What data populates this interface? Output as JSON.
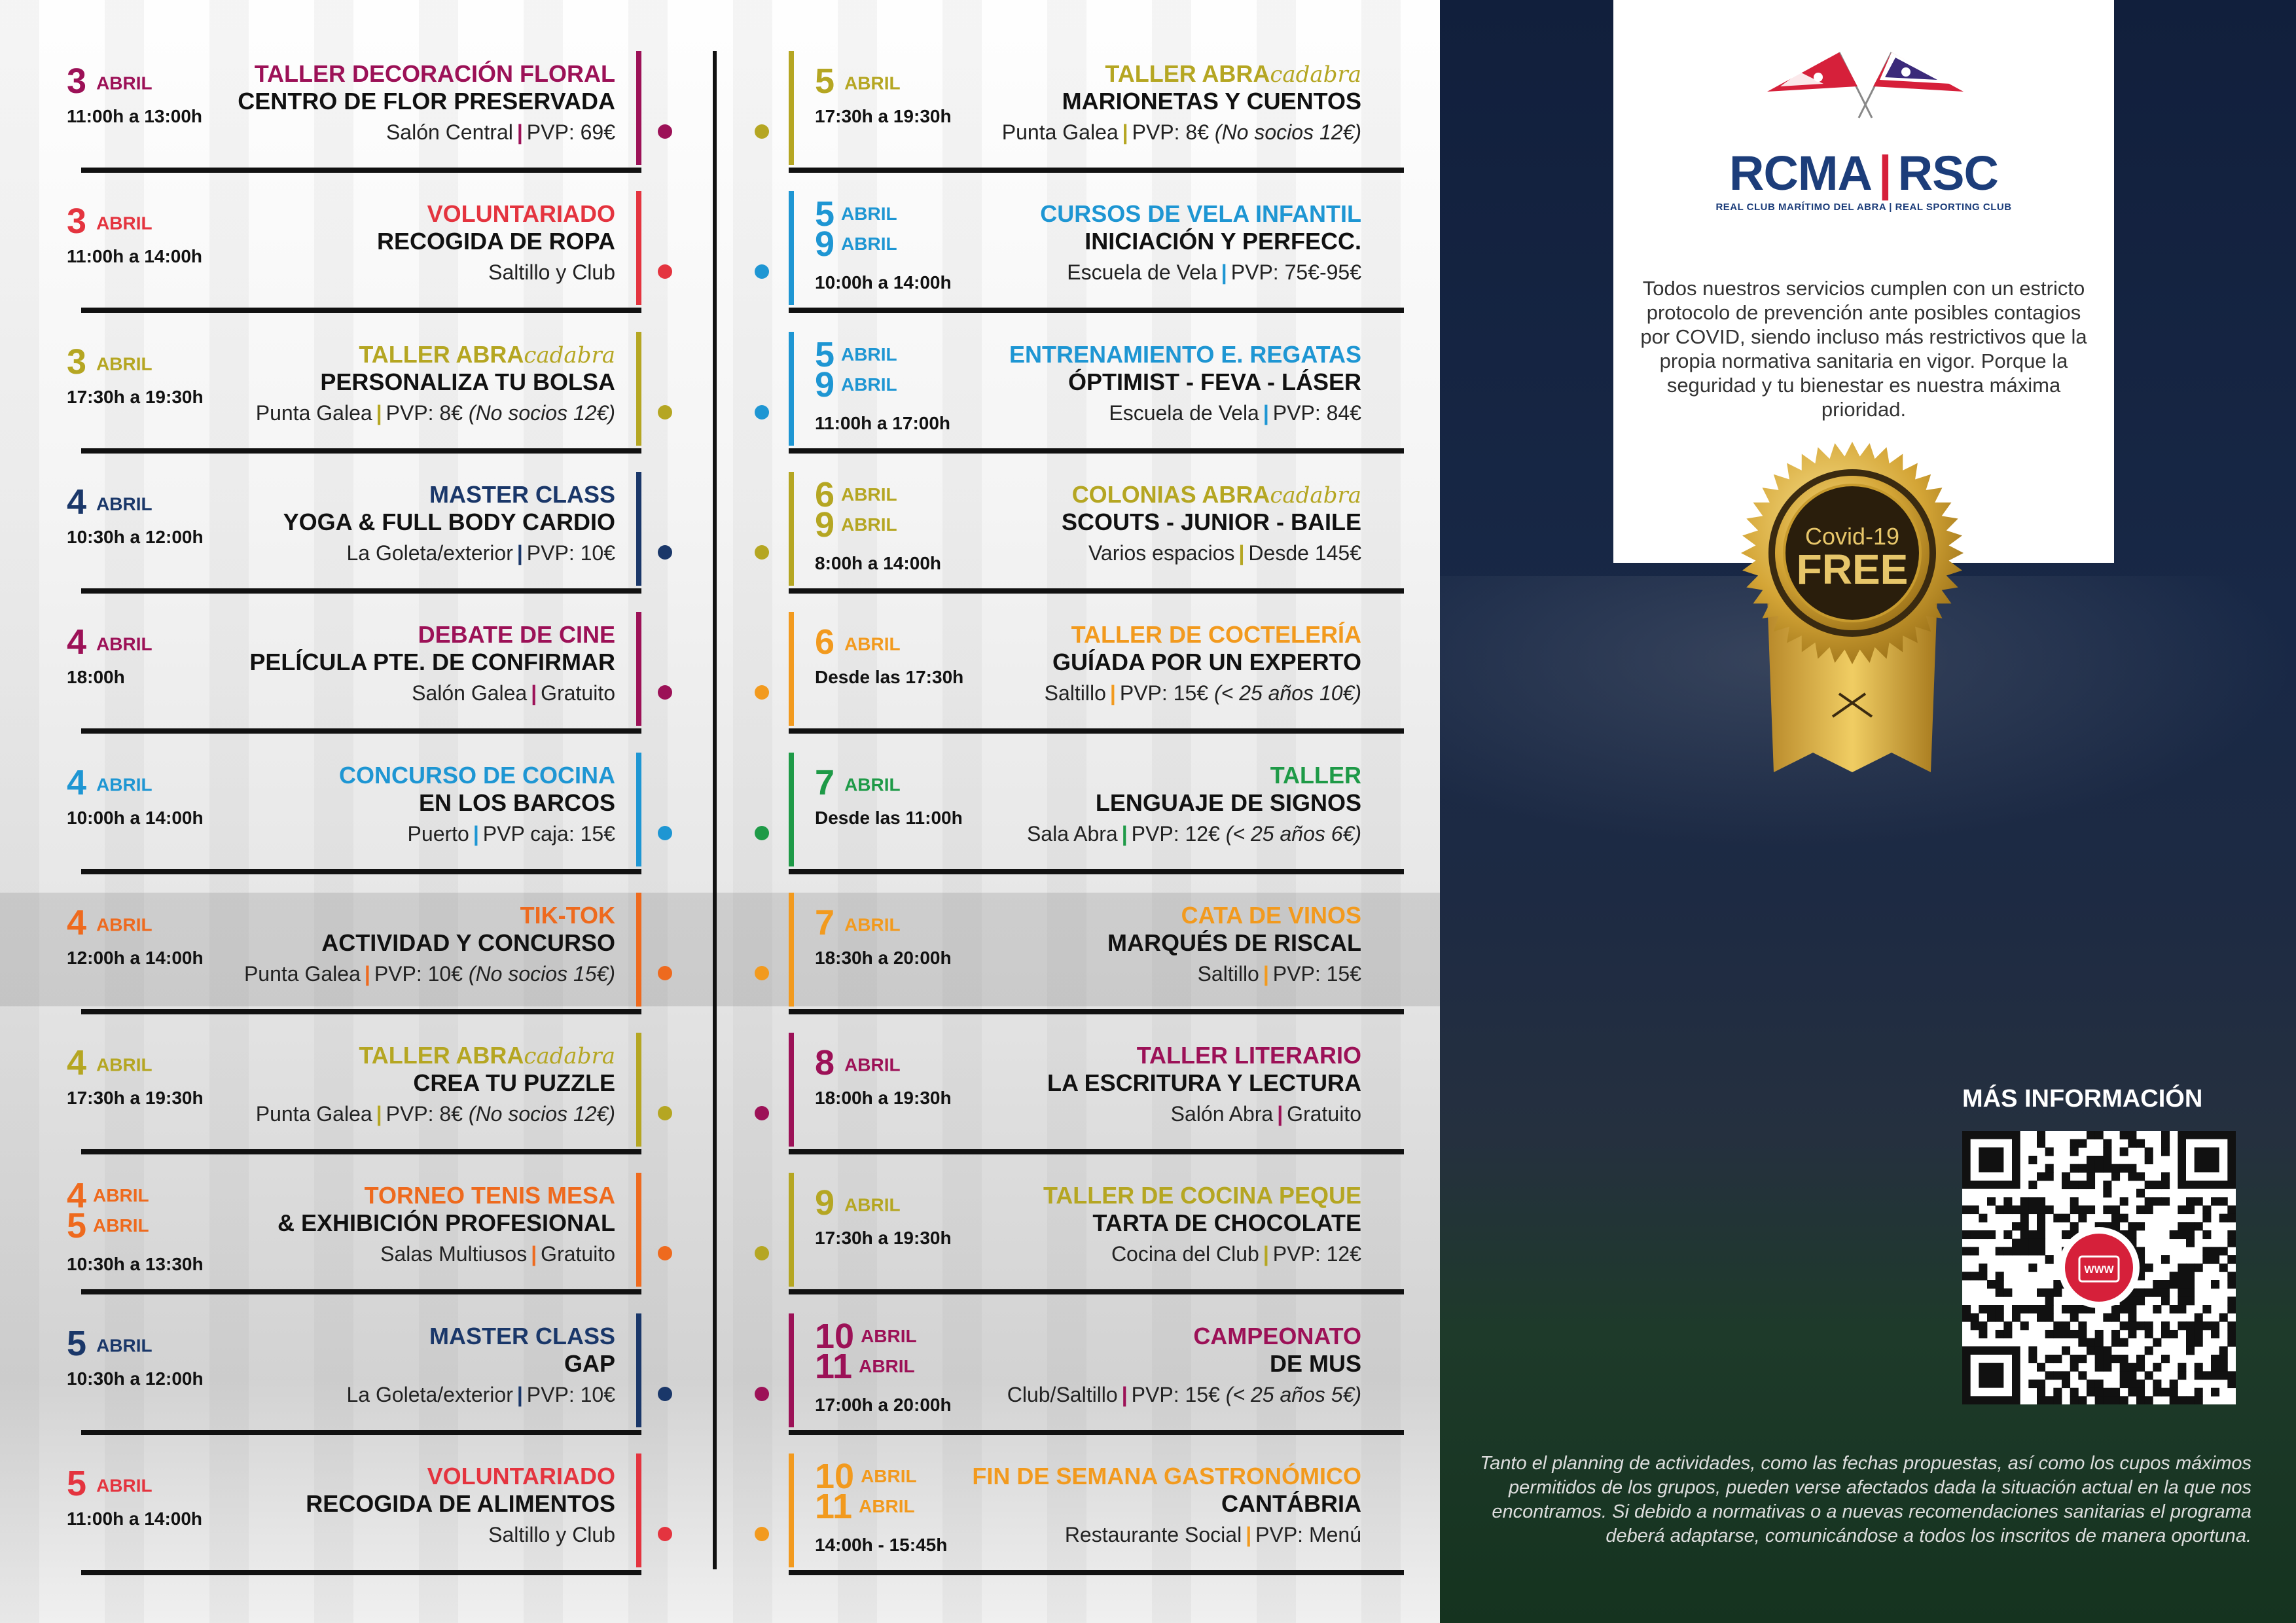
{
  "left_column": [
    {
      "date_num": "3",
      "date_month": "ABRIL",
      "time": "11:00h a 13:00h",
      "category": "TALLER DECORACIÓN FLORAL",
      "title": "CENTRO DE FLOR PRESERVADA",
      "place": "Salón Central",
      "price": "PVP: 69€",
      "price_note": "",
      "color": "#9c1157"
    },
    {
      "date_num": "3",
      "date_month": "ABRIL",
      "time": "11:00h a 14:00h",
      "category": "VOLUNTARIADO",
      "title": "RECOGIDA DE ROPA",
      "place": "Saltillo y Club",
      "price": "",
      "price_note": "",
      "color": "#e4343f"
    },
    {
      "date_num": "3",
      "date_month": "ABRIL",
      "time": "17:30h a 19:30h",
      "category": "TALLER ABRA",
      "category_script": "cadabra",
      "title": "PERSONALIZA TU BOLSA",
      "place": "Punta Galea",
      "price": "PVP: 8€",
      "price_note": "(No socios 12€)",
      "color": "#b5a622"
    },
    {
      "date_num": "4",
      "date_month": "ABRIL",
      "time": "10:30h a 12:00h",
      "category": "MASTER CLASS",
      "title": "YOGA & FULL BODY CARDIO",
      "place": "La Goleta/exterior",
      "price": "PVP: 10€",
      "price_note": "",
      "color": "#1a3769"
    },
    {
      "date_num": "4",
      "date_month": "ABRIL",
      "time": "18:00h",
      "category": "DEBATE DE CINE",
      "title": "PELÍCULA PTE. DE CONFIRMAR",
      "place": "Salón Galea",
      "price": "Gratuito",
      "price_note": "",
      "color": "#9c1157"
    },
    {
      "date_num": "4",
      "date_month": "ABRIL",
      "time": "10:00h a 14:00h",
      "category": "CONCURSO DE COCINA",
      "title": "EN LOS BARCOS",
      "place": "Puerto",
      "price": "PVP caja: 15€",
      "price_note": "",
      "color": "#1e96d3"
    },
    {
      "date_num": "4",
      "date_month": "ABRIL",
      "time": "12:00h a 14:00h",
      "category": "TIK-TOK",
      "title": "ACTIVIDAD Y CONCURSO",
      "place": "Punta Galea",
      "price": "PVP: 10€",
      "price_note": "(No socios 15€)",
      "color": "#ee6a1e"
    },
    {
      "date_num": "4",
      "date_month": "ABRIL",
      "time": "17:30h a 19:30h",
      "category": "TALLER ABRA",
      "category_script": "cadabra",
      "title": "CREA TU PUZZLE",
      "place": "Punta Galea",
      "price": "PVP: 8€",
      "price_note": "(No socios 12€)",
      "color": "#b5a622"
    },
    {
      "date_num": "4",
      "date_num2": "5",
      "date_month": "ABRIL",
      "time": "10:30h a 13:30h",
      "category": "TORNEO TENIS MESA",
      "title": "& EXHIBICIÓN PROFESIONAL",
      "place": "Salas Multiusos",
      "price": "Gratuito",
      "price_note": "",
      "color": "#ee6a1e"
    },
    {
      "date_num": "5",
      "date_month": "ABRIL",
      "time": "10:30h a 12:00h",
      "category": "MASTER CLASS",
      "title": "GAP",
      "place": "La Goleta/exterior",
      "price": "PVP: 10€",
      "price_note": "",
      "color": "#1a3769"
    },
    {
      "date_num": "5",
      "date_month": "ABRIL",
      "time": "11:00h a 14:00h",
      "category": "VOLUNTARIADO",
      "title": "RECOGIDA DE ALIMENTOS",
      "place": "Saltillo y Club",
      "price": "",
      "price_note": "",
      "color": "#e4343f"
    }
  ],
  "right_column": [
    {
      "date_num": "5",
      "date_month": "ABRIL",
      "time": "17:30h a 19:30h",
      "category": "TALLER ABRA",
      "category_script": "cadabra",
      "title": "MARIONETAS Y CUENTOS",
      "place": "Punta Galea",
      "price": "PVP: 8€",
      "price_note": "(No socios 12€)",
      "color": "#b5a622"
    },
    {
      "date_num": "5",
      "date_num2": "9",
      "date_month": "ABRIL",
      "time": "10:00h a 14:00h",
      "category": "CURSOS DE VELA INFANTIL",
      "title": "INICIACIÓN Y PERFECC.",
      "place": "Escuela de Vela",
      "price": "PVP: 75€-95€",
      "price_note": "",
      "color": "#1e96d3"
    },
    {
      "date_num": "5",
      "date_num2": "9",
      "date_month": "ABRIL",
      "time": "11:00h a 17:00h",
      "category": "ENTRENAMIENTO E. REGATAS",
      "title": "ÓPTIMIST - FEVA - LÁSER",
      "place": "Escuela de Vela",
      "price": "PVP: 84€",
      "price_note": "",
      "color": "#1e96d3"
    },
    {
      "date_num": "6",
      "date_num2": "9",
      "date_month": "ABRIL",
      "time": "8:00h a 14:00h",
      "category": "COLONIAS ABRA",
      "category_script": "cadabra",
      "title": "SCOUTS - JUNIOR - BAILE",
      "place": "Varios espacios",
      "price": "Desde 145€",
      "price_note": "",
      "color": "#b5a622"
    },
    {
      "date_num": "6",
      "date_month": "ABRIL",
      "time": "Desde las 17:30h",
      "category": "TALLER DE COCTELERÍA",
      "title": "GUÍADA POR UN EXPERTO",
      "place": "Saltillo",
      "price": "PVP: 15€",
      "price_note": "(< 25 años 10€)",
      "color": "#f29a1e"
    },
    {
      "date_num": "7",
      "date_month": "ABRIL",
      "time": "Desde las 11:00h",
      "category": "TALLER",
      "title": "LENGUAJE DE SIGNOS",
      "place": "Sala Abra",
      "price": "PVP: 12€",
      "price_note": "(< 25 años 6€)",
      "color": "#1e9a47"
    },
    {
      "date_num": "7",
      "date_month": "ABRIL",
      "time": "18:30h a 20:00h",
      "category": "CATA DE VINOS",
      "title": "MARQUÉS DE RISCAL",
      "place": "Saltillo",
      "price": "PVP: 15€",
      "price_note": "",
      "color": "#f29a1e"
    },
    {
      "date_num": "8",
      "date_month": "ABRIL",
      "time": "18:00h a 19:30h",
      "category": "TALLER LITERARIO",
      "title": "LA ESCRITURA Y LECTURA",
      "place": "Salón Abra",
      "price": "Gratuito",
      "price_note": "",
      "color": "#9c1157"
    },
    {
      "date_num": "9",
      "date_month": "ABRIL",
      "time": "17:30h a 19:30h",
      "category": "TALLER DE COCINA PEQUE",
      "title": "TARTA DE CHOCOLATE",
      "place": "Cocina del Club",
      "price": "PVP: 12€",
      "price_note": "",
      "color": "#b5a622"
    },
    {
      "date_num": "10",
      "date_num2": "11",
      "date_month": "ABRIL",
      "time": "17:00h a 20:00h",
      "category": "CAMPEONATO",
      "title": "DE MUS",
      "place": "Club/Saltillo",
      "price": "PVP: 15€",
      "price_note": "(< 25 años 5€)",
      "color": "#9c1157"
    },
    {
      "date_num": "10",
      "date_num2": "11",
      "date_month": "ABRIL",
      "time": "14:00h - 15:45h",
      "category": "FIN DE SEMANA GASTRONÓMICO",
      "title": "CANTÁBRIA",
      "place": "Restaurante Social",
      "price": "PVP: Menú",
      "price_note": "",
      "color": "#f29a1e"
    }
  ],
  "brand": {
    "name_left": "RCMA",
    "name_right": "RSC",
    "subtitle": "REAL CLUB MARÍTIMO DEL ABRA  |  REAL SPORTING CLUB"
  },
  "covid_text": "Todos nuestros servicios cumplen con un estricto protocolo de prevención ante posibles contagios por COVID, siendo incluso más restrictivos que la propia normativa sanitaria en vigor. Porque la seguridad y tu bienestar es nuestra máxima prioridad.",
  "seal": {
    "line1": "Covid-19",
    "line2": "FREE"
  },
  "more_info": "MÁS INFORMACIÓN",
  "qr_badge": "WWW",
  "disclaimer": "Tanto el planning de actividades, como las fechas propuestas, así como los cupos máximos permitidos de los grupos, pueden verse afectados dada la situación actual en la que nos encontramos. Si debido a normativas o a nuevas recomendaciones sanitarias el programa deberá adaptarse, comunicándose a todos los inscritos de manera oportuna.",
  "colors": {
    "navy": "#1a3769",
    "brand_blue": "#1c3d7a",
    "brand_red": "#d6203a",
    "gold": "#c89b2e"
  }
}
